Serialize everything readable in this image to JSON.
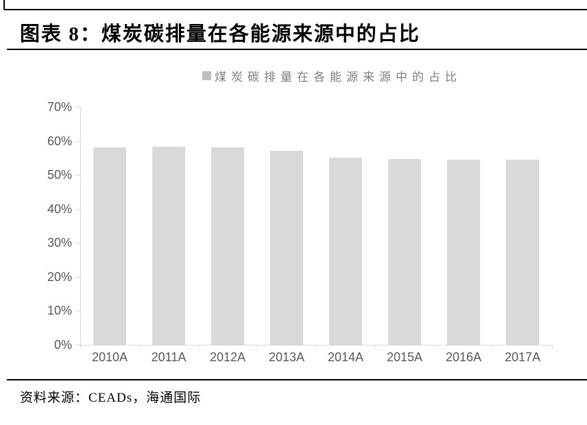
{
  "report": {
    "figure_title": "图表 8：煤炭碳排量在各能源来源中的占比",
    "source": "资料来源：CEADs，海通国际"
  },
  "legend": {
    "label": "煤炭碳排量在各能源来源中的占比"
  },
  "colors": {
    "bar_fill": "#d9d9d9",
    "legend_marker": "#bfbfbf",
    "legend_text": "#7f7f7f",
    "axis_line": "#d9d9d9",
    "tick_label": "#595959",
    "rule_black": "#000000"
  },
  "chart_data": {
    "type": "bar",
    "title": "煤炭碳排量在各能源来源中的占比",
    "categories": [
      "2010A",
      "2011A",
      "2012A",
      "2013A",
      "2014A",
      "2015A",
      "2016A",
      "2017A"
    ],
    "values": [
      58.1,
      58.3,
      58.1,
      57.1,
      55.1,
      54.6,
      54.5,
      54.4
    ],
    "xlabel": "",
    "ylabel": "",
    "ylim": [
      0,
      70
    ],
    "ytick_step": 10,
    "ytick_labels": [
      "0%",
      "10%",
      "20%",
      "30%",
      "40%",
      "50%",
      "60%",
      "70%"
    ],
    "grid": false,
    "legend_position": "top-center",
    "bar_color": "#d9d9d9"
  }
}
